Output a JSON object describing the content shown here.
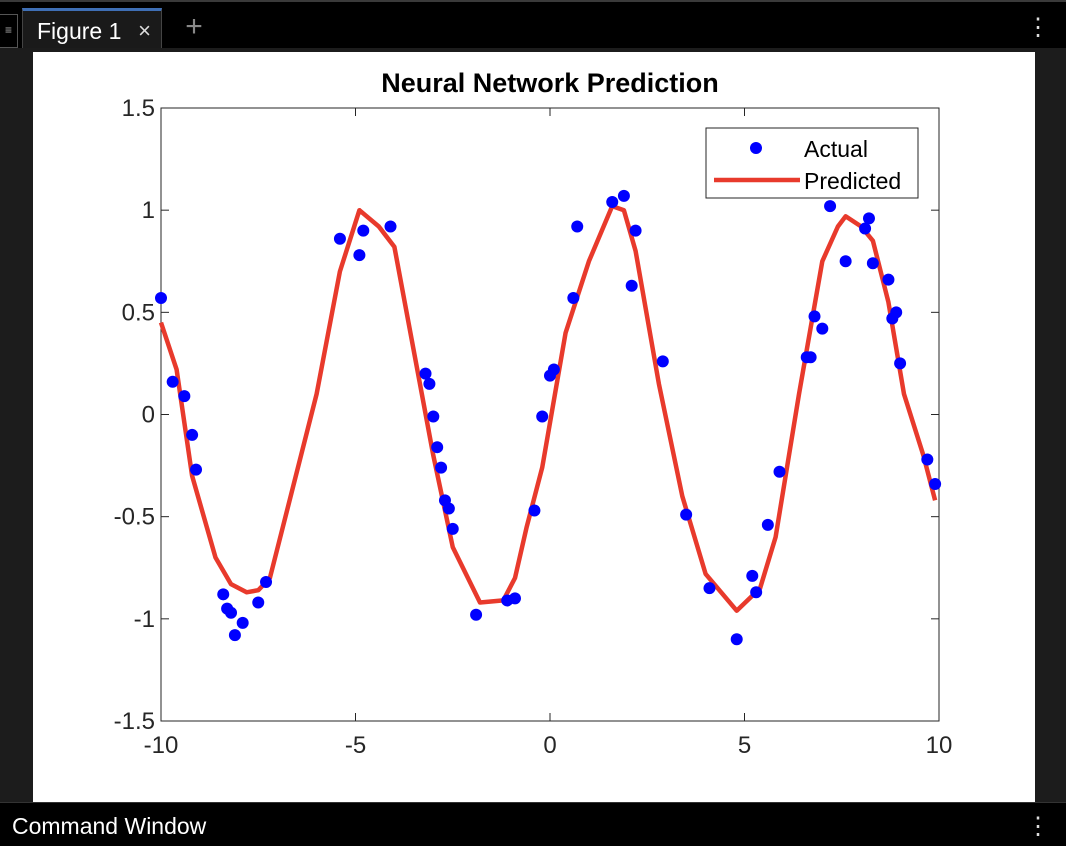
{
  "window": {
    "tab_label": "Figure 1",
    "close_glyph": "×",
    "add_glyph": "+",
    "menu_glyph": "⋮",
    "handle_glyph": "≡",
    "command_window_title": "Command Window"
  },
  "chart_data": {
    "type": "scatter",
    "title": "Neural Network Prediction",
    "xlabel": "",
    "ylabel": "",
    "xlim": [
      -10,
      10
    ],
    "ylim": [
      -1.5,
      1.5
    ],
    "xticks": [
      "-10",
      "-5",
      "0",
      "5",
      "10"
    ],
    "yticks": [
      "1.5",
      "1",
      "0.5",
      "0",
      "-0.5",
      "-1",
      "-1.5"
    ],
    "grid": false,
    "legend_position": "top-right",
    "series": [
      {
        "name": "Actual",
        "kind": "scatter",
        "color": "#0000ff",
        "x": [
          -10.0,
          -9.7,
          -9.4,
          -9.2,
          -9.1,
          -8.4,
          -8.3,
          -8.2,
          -8.1,
          -7.9,
          -7.5,
          -7.3,
          -5.4,
          -4.9,
          -4.8,
          -4.1,
          -3.2,
          -3.1,
          -3.0,
          -2.9,
          -2.8,
          -2.7,
          -2.6,
          -2.5,
          -1.9,
          -1.1,
          -0.9,
          -0.4,
          -0.2,
          0.0,
          0.1,
          0.6,
          0.7,
          1.6,
          1.9,
          2.1,
          2.2,
          2.9,
          3.5,
          4.1,
          4.8,
          5.2,
          5.3,
          5.6,
          5.9,
          6.6,
          6.7,
          6.8,
          7.0,
          7.2,
          7.6,
          8.1,
          8.2,
          8.3,
          8.7,
          8.8,
          8.9,
          9.0,
          9.7,
          9.9
        ],
        "y": [
          0.57,
          0.16,
          0.09,
          -0.1,
          -0.27,
          -0.88,
          -0.95,
          -0.97,
          -1.08,
          -1.02,
          -0.92,
          -0.82,
          0.86,
          0.78,
          0.9,
          0.92,
          0.2,
          0.15,
          -0.01,
          -0.16,
          -0.26,
          -0.42,
          -0.46,
          -0.56,
          -0.98,
          -0.91,
          -0.9,
          -0.47,
          -0.01,
          0.19,
          0.22,
          0.57,
          0.92,
          1.04,
          1.07,
          0.63,
          0.9,
          0.26,
          -0.49,
          -0.85,
          -1.1,
          -0.79,
          -0.87,
          -0.54,
          -0.28,
          0.28,
          0.28,
          0.48,
          0.42,
          1.02,
          0.75,
          0.91,
          0.96,
          0.74,
          0.66,
          0.47,
          0.5,
          0.25,
          -0.22,
          -0.34
        ]
      },
      {
        "name": "Predicted",
        "kind": "line",
        "color": "#e83a2c",
        "x": [
          -10.0,
          -9.6,
          -9.2,
          -8.6,
          -8.2,
          -7.8,
          -7.5,
          -7.2,
          -6.0,
          -5.4,
          -4.9,
          -4.4,
          -4.0,
          -3.0,
          -2.5,
          -1.8,
          -1.2,
          -0.9,
          -0.6,
          -0.2,
          0.4,
          1.0,
          1.6,
          1.9,
          2.2,
          2.8,
          3.4,
          4.0,
          4.8,
          5.4,
          5.8,
          6.4,
          7.0,
          7.4,
          7.6,
          8.0,
          8.3,
          8.7,
          9.1,
          9.6,
          9.9
        ],
        "y": [
          0.45,
          0.22,
          -0.3,
          -0.7,
          -0.83,
          -0.87,
          -0.86,
          -0.8,
          0.1,
          0.7,
          1.0,
          0.92,
          0.82,
          -0.2,
          -0.65,
          -0.92,
          -0.91,
          -0.8,
          -0.55,
          -0.26,
          0.4,
          0.75,
          1.02,
          1.0,
          0.8,
          0.15,
          -0.4,
          -0.78,
          -0.96,
          -0.85,
          -0.6,
          0.1,
          0.75,
          0.92,
          0.97,
          0.92,
          0.85,
          0.55,
          0.1,
          -0.2,
          -0.42
        ]
      }
    ]
  }
}
